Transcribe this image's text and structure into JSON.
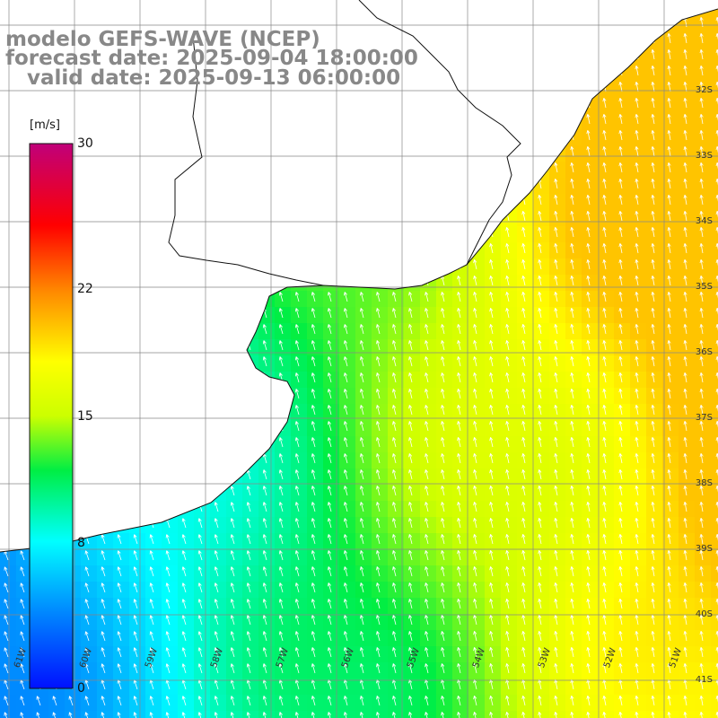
{
  "header": {
    "line1": "modelo GEFS-WAVE (NCEP)",
    "line2": "forecast date: 2025-09-04 18:00:00",
    "line3": "   valid date: 2025-09-13 06:00:00"
  },
  "colorbar": {
    "unit": "[m/s]",
    "ticks": [
      {
        "value": 30,
        "label": "30"
      },
      {
        "value": 22,
        "label": "22"
      },
      {
        "value": 15,
        "label": "15"
      },
      {
        "value": 8,
        "label": "8"
      },
      {
        "value": 0,
        "label": "0"
      }
    ],
    "range": [
      0,
      30
    ]
  },
  "chart_data": {
    "type": "heatmap",
    "variable": "wind speed with direction arrows",
    "lat_labels": [
      "32S",
      "33S",
      "34S",
      "35S",
      "36S",
      "37S",
      "38S",
      "39S",
      "40S",
      "41S"
    ],
    "lon_labels": [
      "61W",
      "60W",
      "59W",
      "58W",
      "57W",
      "56W",
      "55W",
      "54W",
      "53W",
      "52W",
      "51W"
    ],
    "lat_range": [
      -41.3,
      -31.0
    ],
    "lon_range": [
      -61.5,
      -50.5
    ],
    "grid": true,
    "field_summary": "Speeds ~5-8 m/s in the southwest, ~10-14 m/s over the Rio de la Plata and central shelf, rising to ~17-19 m/s in the northeast; arrows point generally toward the north-northwest."
  }
}
